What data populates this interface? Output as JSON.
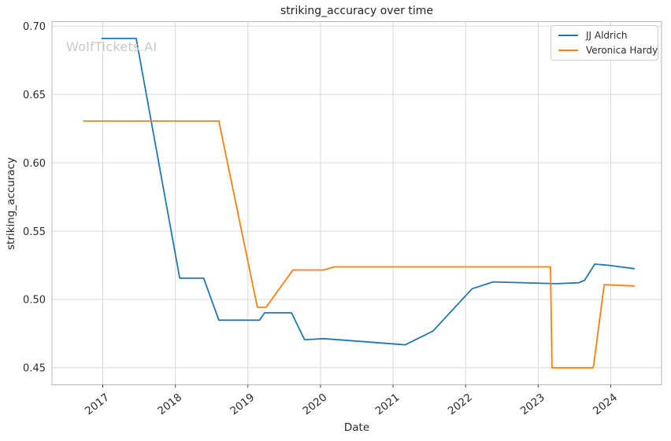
{
  "title": "striking_accuracy over time",
  "watermark": "WolfTickets.AI",
  "colors": {
    "background": "#ffffff",
    "grid": "#d9d9d9",
    "spine": "#b5b5b5",
    "tick_mark": "#404040",
    "tick_text": "#2b2b2b",
    "text": "#262626",
    "watermark": "#c8c8c8",
    "series_blue": "#1f77b4",
    "series_orange": "#ff7f0e"
  },
  "chart_data": {
    "type": "line",
    "title": "striking_accuracy over time",
    "xlabel": "Date",
    "ylabel": "striking_accuracy",
    "grid": true,
    "legend_position": "upper right",
    "xlim": [
      2016.3,
      2024.7
    ],
    "ylim": [
      0.4375,
      0.7033
    ],
    "x_ticks": [
      {
        "label": "2017",
        "value": 2017
      },
      {
        "label": "2018",
        "value": 2018
      },
      {
        "label": "2019",
        "value": 2019
      },
      {
        "label": "2020",
        "value": 2020
      },
      {
        "label": "2021",
        "value": 2021
      },
      {
        "label": "2022",
        "value": 2022
      },
      {
        "label": "2023",
        "value": 2023
      },
      {
        "label": "2024",
        "value": 2024
      }
    ],
    "y_ticks": [
      {
        "label": "0.45",
        "value": 0.45
      },
      {
        "label": "0.50",
        "value": 0.5
      },
      {
        "label": "0.55",
        "value": 0.55
      },
      {
        "label": "0.60",
        "value": 0.6
      },
      {
        "label": "0.65",
        "value": 0.65
      },
      {
        "label": "0.70",
        "value": 0.7
      }
    ],
    "series": [
      {
        "name": "JJ Aldrich",
        "color": "#1f77b4",
        "points": [
          [
            2016.98,
            0.691
          ],
          [
            2017.46,
            0.691
          ],
          [
            2018.06,
            0.5155
          ],
          [
            2018.39,
            0.5155
          ],
          [
            2018.6,
            0.4848
          ],
          [
            2019.16,
            0.4848
          ],
          [
            2019.23,
            0.4902
          ],
          [
            2019.6,
            0.4902
          ],
          [
            2019.78,
            0.4705
          ],
          [
            2020.05,
            0.4713
          ],
          [
            2021.17,
            0.4668
          ],
          [
            2021.55,
            0.4768
          ],
          [
            2022.09,
            0.5078
          ],
          [
            2022.38,
            0.5128
          ],
          [
            2023.25,
            0.5115
          ],
          [
            2023.56,
            0.5122
          ],
          [
            2023.64,
            0.514
          ],
          [
            2023.78,
            0.5258
          ],
          [
            2023.96,
            0.525
          ],
          [
            2024.33,
            0.5225
          ]
        ]
      },
      {
        "name": "Veronica Hardy",
        "color": "#ff7f0e",
        "points": [
          [
            2016.73,
            0.6305
          ],
          [
            2018.6,
            0.6305
          ],
          [
            2019.13,
            0.4942
          ],
          [
            2019.25,
            0.4942
          ],
          [
            2019.62,
            0.5215
          ],
          [
            2020.04,
            0.5215
          ],
          [
            2020.19,
            0.5238
          ],
          [
            2023.17,
            0.5238
          ],
          [
            2023.19,
            0.45
          ],
          [
            2023.76,
            0.45
          ],
          [
            2023.91,
            0.5108
          ],
          [
            2024.33,
            0.5098
          ]
        ]
      }
    ]
  }
}
